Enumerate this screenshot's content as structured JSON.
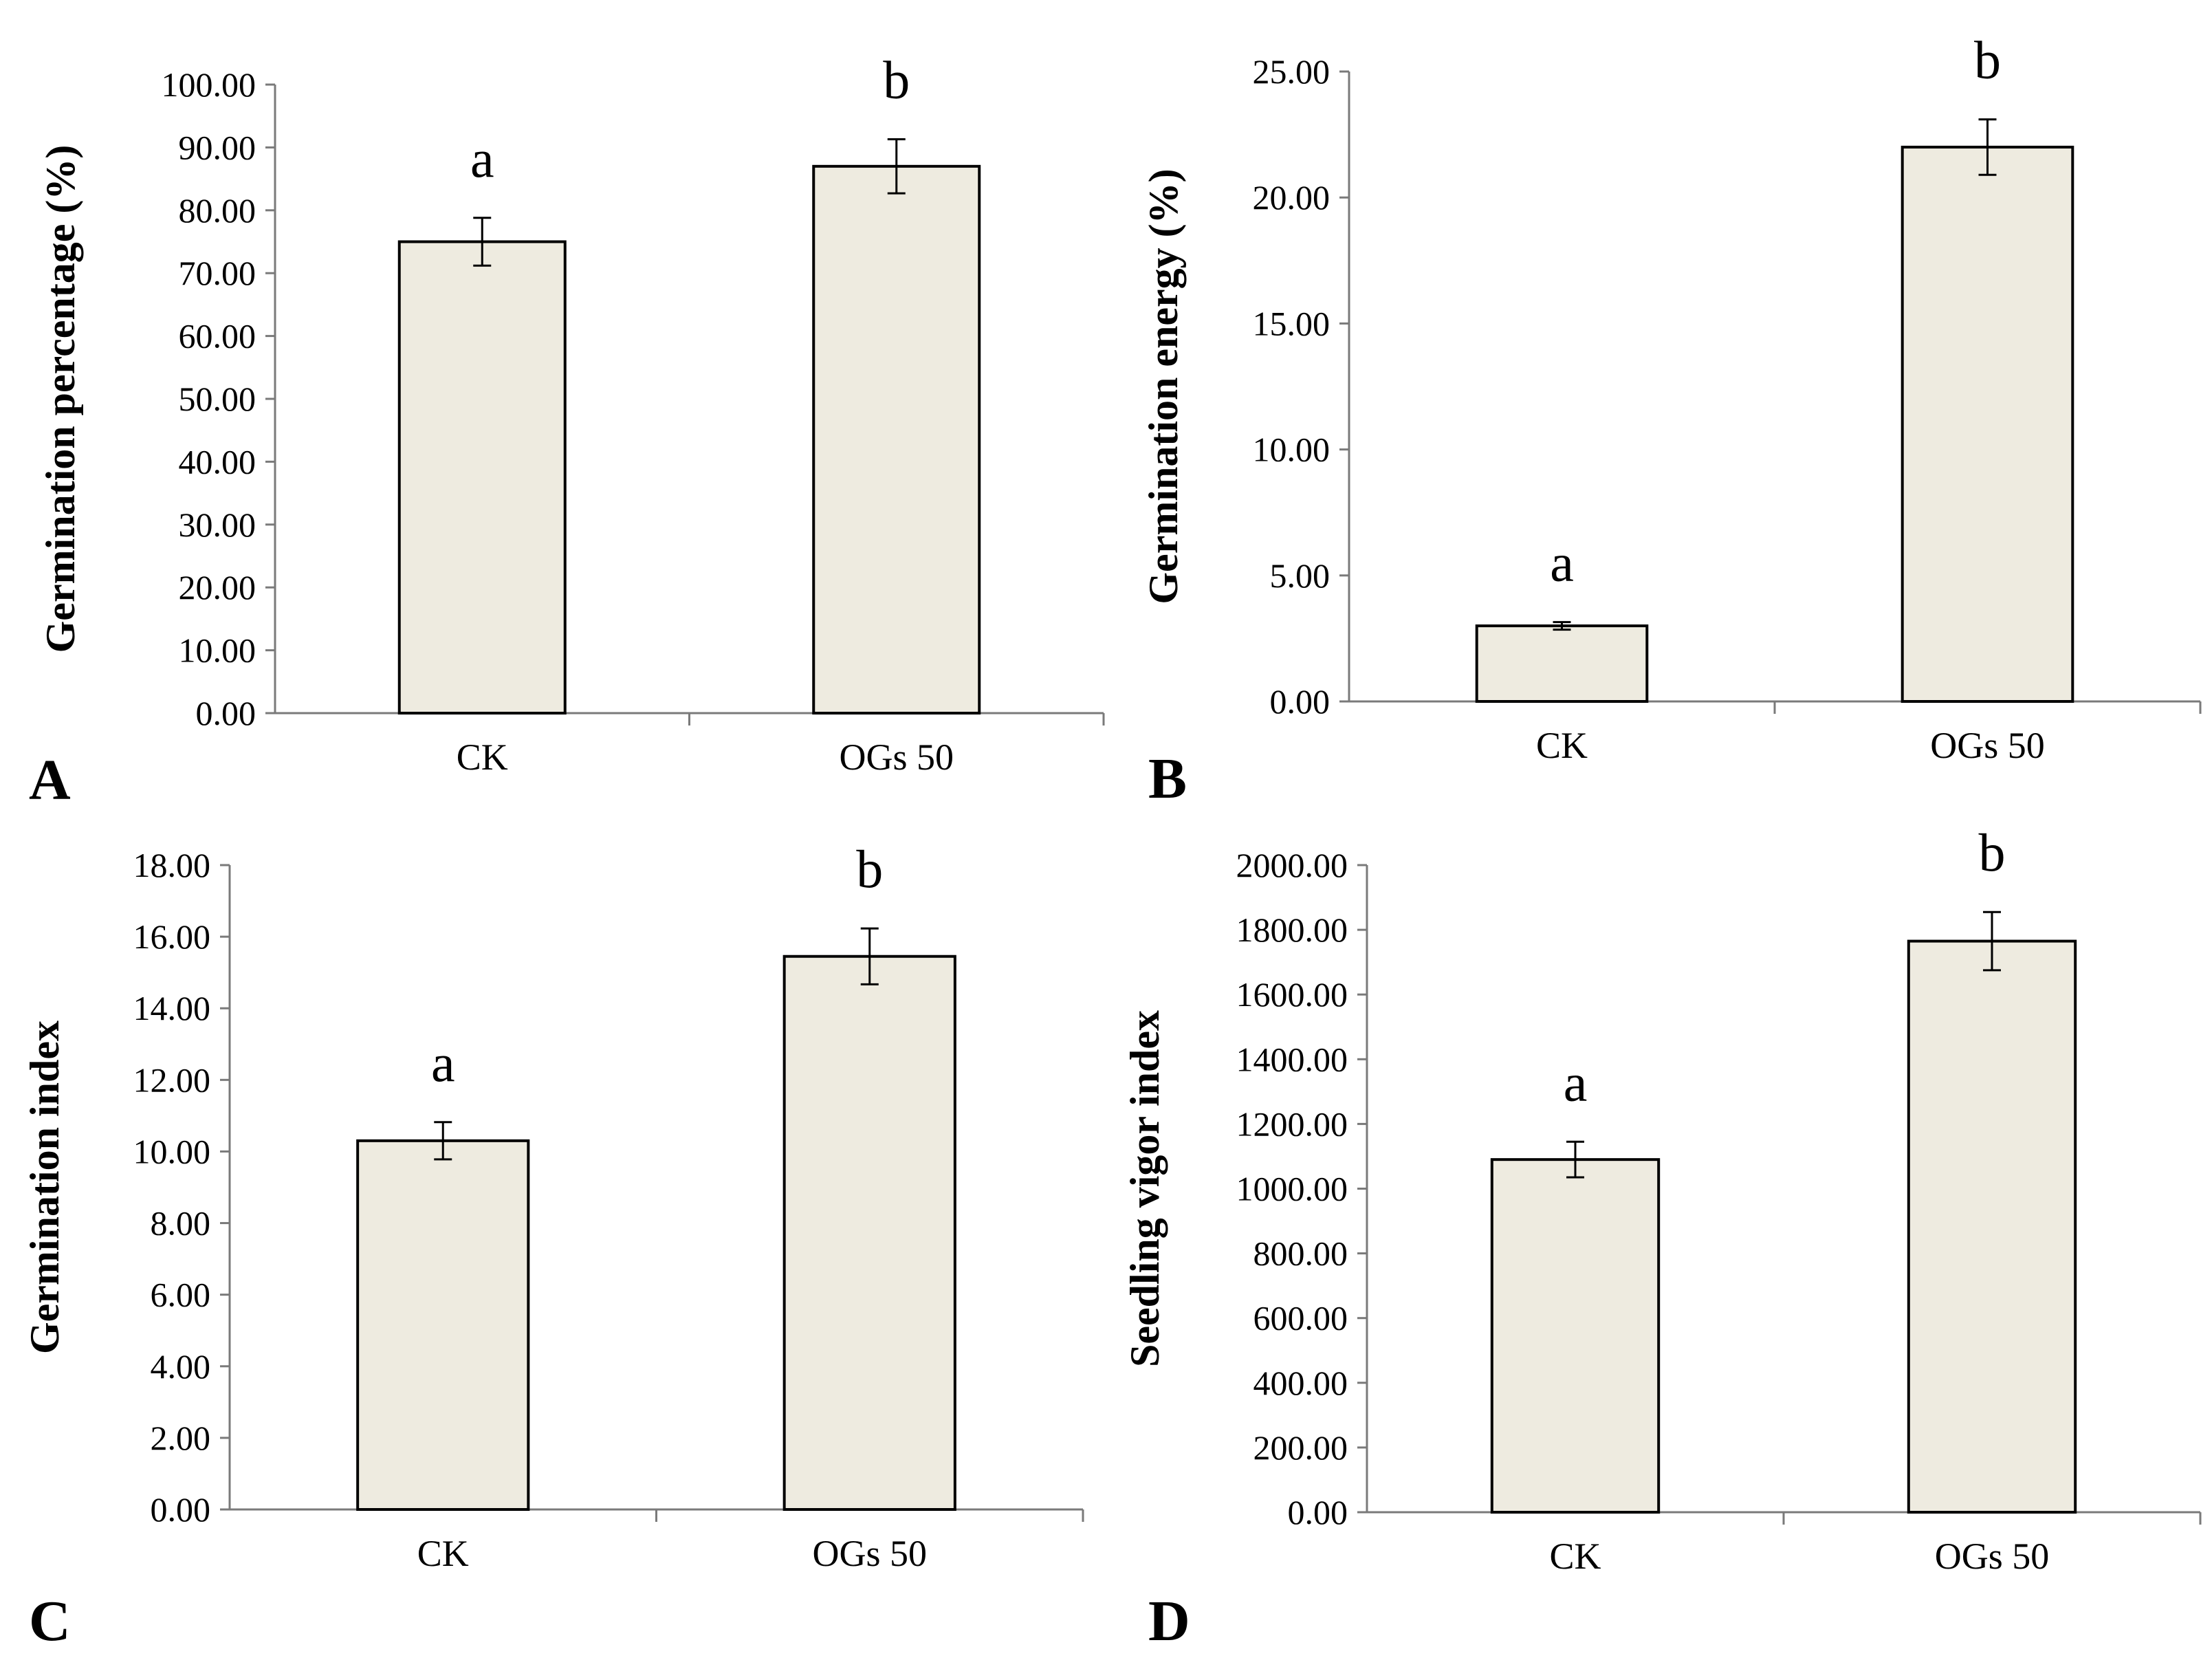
{
  "chart_data": [
    {
      "type": "bar",
      "panel": "A",
      "ylabel": "Germination percentage (%)",
      "categories": [
        "CK",
        "OGs 50"
      ],
      "values": [
        75.0,
        87.0
      ],
      "errors": [
        3.8,
        4.3
      ],
      "significance": [
        "a",
        "b"
      ],
      "ylim": [
        0,
        100
      ],
      "yticks": [
        "0.00",
        "10.00",
        "20.00",
        "30.00",
        "40.00",
        "50.00",
        "60.00",
        "70.00",
        "80.00",
        "90.00",
        "100.00"
      ],
      "bar_color": "#eeebe0"
    },
    {
      "type": "bar",
      "panel": "B",
      "ylabel": "Germination energy (%)",
      "categories": [
        "CK",
        "OGs 50"
      ],
      "values": [
        3.0,
        22.0
      ],
      "errors": [
        0.15,
        1.1
      ],
      "significance": [
        "a",
        "b"
      ],
      "ylim": [
        0,
        25
      ],
      "yticks": [
        "0.00",
        "5.00",
        "10.00",
        "15.00",
        "20.00",
        "25.00"
      ],
      "bar_color": "#eeebe0"
    },
    {
      "type": "bar",
      "panel": "C",
      "ylabel": "Germination index",
      "categories": [
        "CK",
        "OGs 50"
      ],
      "values": [
        10.3,
        15.45
      ],
      "errors": [
        0.52,
        0.78
      ],
      "significance": [
        "a",
        "b"
      ],
      "ylim": [
        0,
        18
      ],
      "yticks": [
        "0.00",
        "2.00",
        "4.00",
        "6.00",
        "8.00",
        "10.00",
        "12.00",
        "14.00",
        "16.00",
        "18.00"
      ],
      "bar_color": "#eeebe0"
    },
    {
      "type": "bar",
      "panel": "D",
      "ylabel": "Seedling vigor index",
      "categories": [
        "CK",
        "OGs 50"
      ],
      "values": [
        1090.0,
        1765.0
      ],
      "errors": [
        55.0,
        90.0
      ],
      "significance": [
        "a",
        "b"
      ],
      "ylim": [
        0,
        2000
      ],
      "yticks": [
        "0.00",
        "200.00",
        "400.00",
        "600.00",
        "800.00",
        "1000.00",
        "1200.00",
        "1400.00",
        "1600.00",
        "1800.00",
        "2000.00"
      ],
      "bar_color": "#eeebe0"
    }
  ]
}
